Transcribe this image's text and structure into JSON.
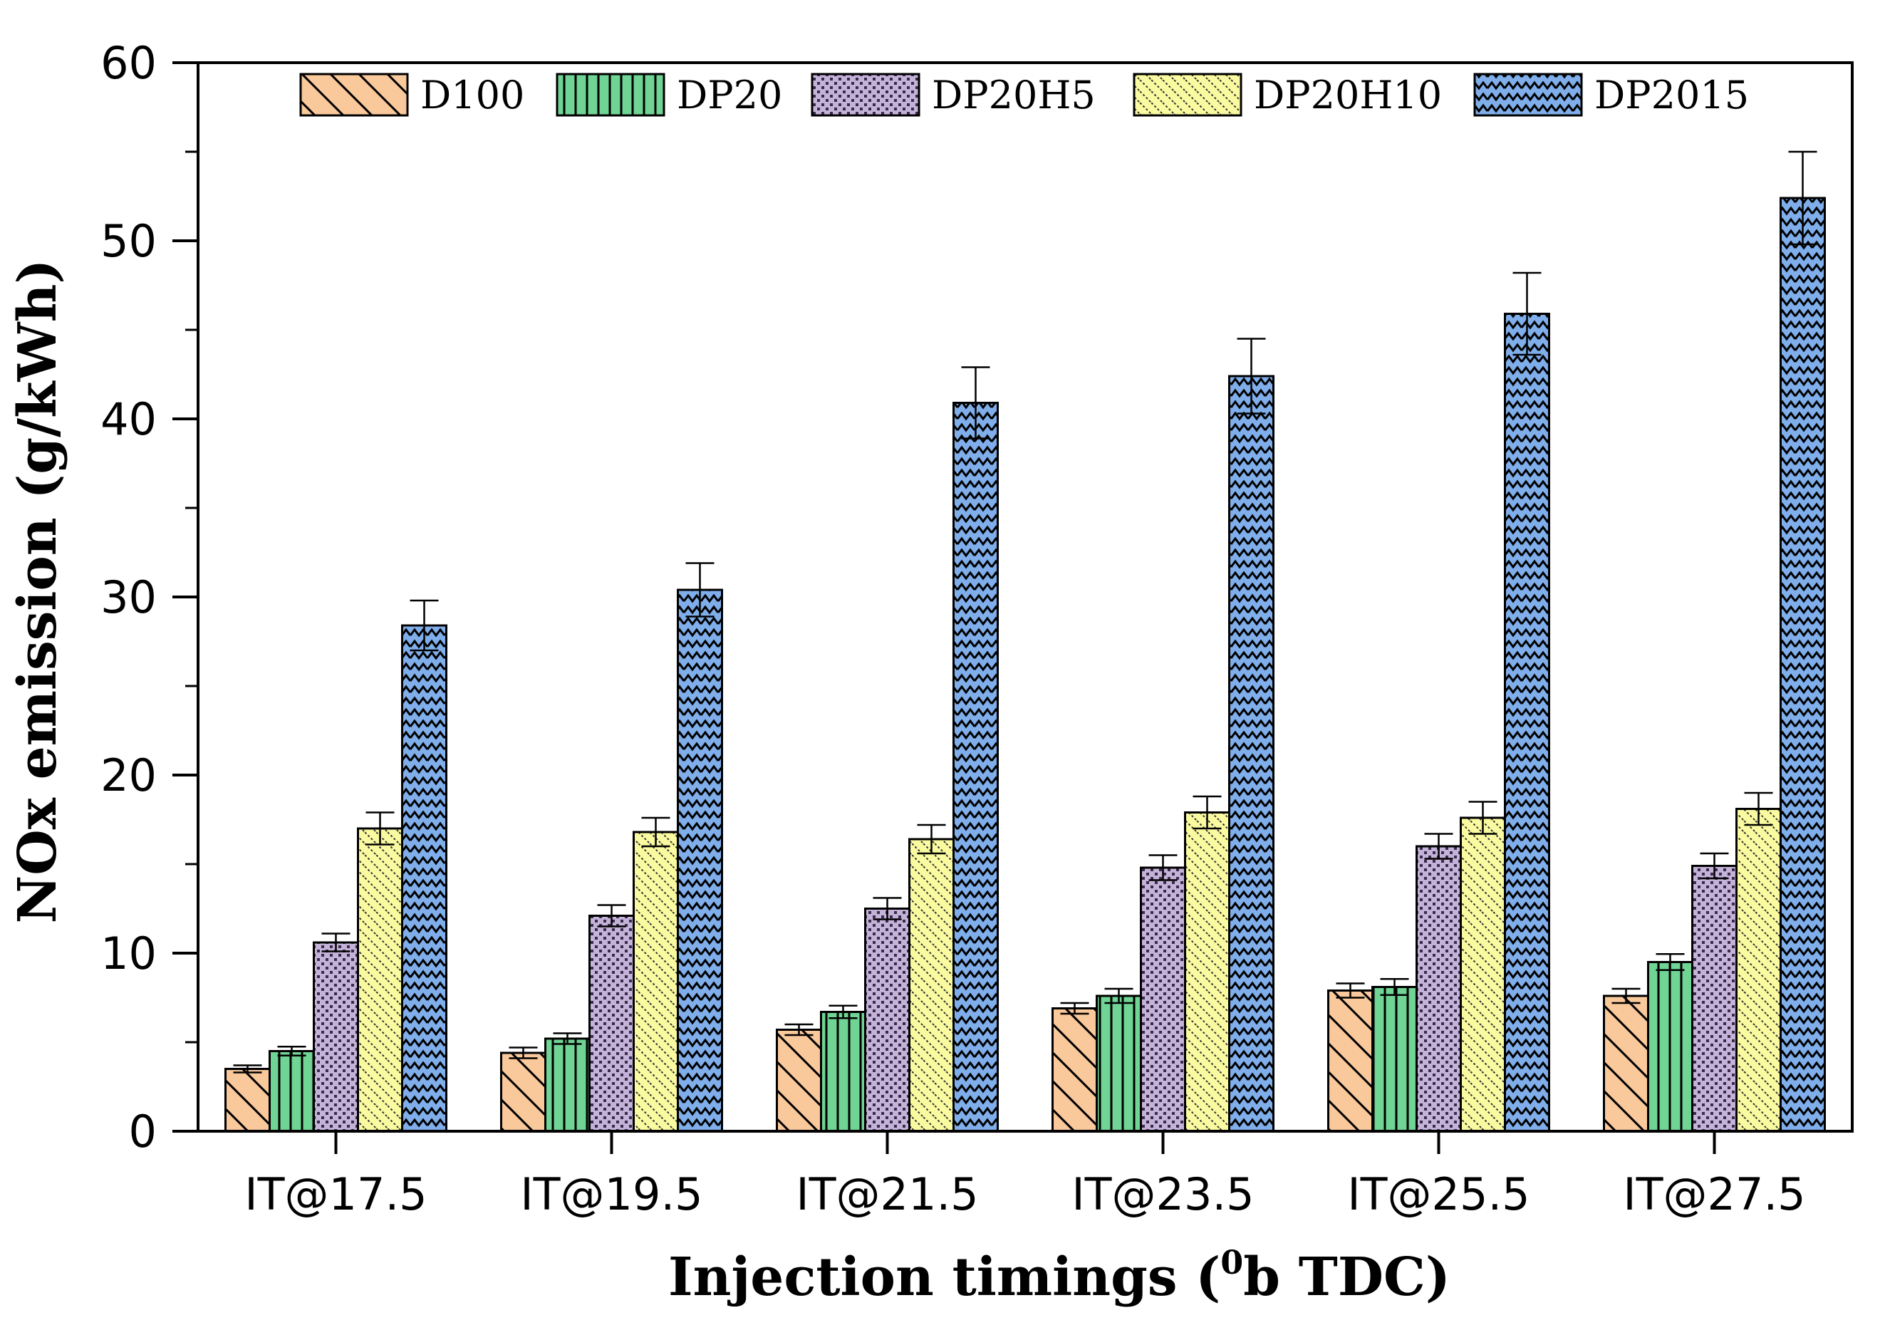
{
  "chart_data": {
    "type": "bar",
    "title": "",
    "xlabel_main": "Injection timings (",
    "xlabel_sup": "0",
    "xlabel_tail": "b TDC)",
    "ylabel": "NOx emission (g/kWh)",
    "ylim": [
      0,
      60
    ],
    "yticks": [
      "0",
      "10",
      "20",
      "30",
      "40",
      "50",
      "60"
    ],
    "categories": [
      "IT@17.5",
      "IT@19.5",
      "IT@21.5",
      "IT@23.5",
      "IT@25.5",
      "IT@27.5"
    ],
    "legend_position": "top",
    "grid": false,
    "series": [
      {
        "name": "D100",
        "color": "#f9c89b",
        "pattern": "diagonal-hatch",
        "values": [
          3.5,
          4.4,
          5.7,
          6.9,
          7.9,
          7.6
        ],
        "errors": [
          0.2,
          0.3,
          0.3,
          0.3,
          0.4,
          0.4
        ]
      },
      {
        "name": "DP20",
        "color": "#6fd494",
        "pattern": "vertical-lines",
        "values": [
          4.5,
          5.2,
          6.7,
          7.6,
          8.1,
          9.5
        ],
        "errors": [
          0.25,
          0.3,
          0.35,
          0.4,
          0.45,
          0.45
        ]
      },
      {
        "name": "DP20H5",
        "color": "#c4b3d8",
        "pattern": "dots",
        "values": [
          10.6,
          12.1,
          12.5,
          14.8,
          16.0,
          14.9
        ],
        "errors": [
          0.5,
          0.6,
          0.6,
          0.7,
          0.7,
          0.7
        ]
      },
      {
        "name": "DP20H10",
        "color": "#fafaa0",
        "pattern": "small-diagonal",
        "values": [
          17.0,
          16.8,
          16.4,
          17.9,
          17.6,
          18.1
        ],
        "errors": [
          0.9,
          0.8,
          0.8,
          0.9,
          0.9,
          0.9
        ]
      },
      {
        "name": "DP2015",
        "color": "#7faeea",
        "pattern": "zigzag",
        "values": [
          28.4,
          30.4,
          40.9,
          42.4,
          45.9,
          52.4
        ],
        "errors": [
          1.4,
          1.5,
          2.0,
          2.1,
          2.3,
          2.6
        ]
      }
    ]
  }
}
